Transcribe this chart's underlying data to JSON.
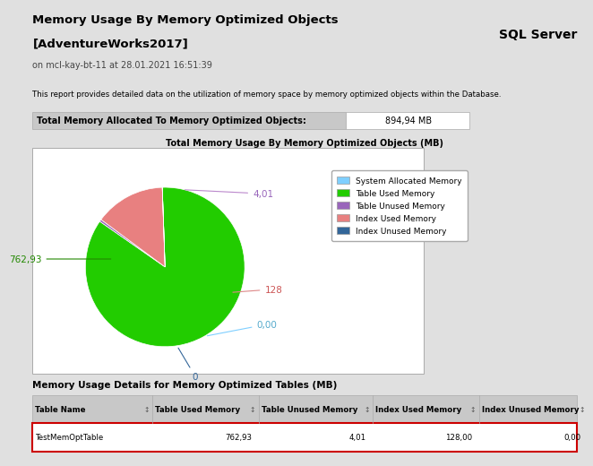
{
  "title_line1": "Memory Usage By Memory Optimized Objects",
  "title_line2": "[AdventureWorks2017]",
  "title_line3": "on mcl-kay-bt-11 at 28.01.2021 16:51:39",
  "sql_server_label": "SQL Server",
  "description": "This report provides detailed data on the utilization of memory space by memory optimized objects within the Database.",
  "total_memory_label": "Total Memory Allocated To Memory Optimized Objects:",
  "total_memory_value": "894,94 MB",
  "pie_title": "Total Memory Usage By Memory Optimized Objects (MB)",
  "pie_values": [
    0.001,
    762.93,
    4.01,
    128.0,
    0.001
  ],
  "pie_display_labels": [
    "0",
    "762,93",
    "4,01",
    "128",
    "0,00"
  ],
  "pie_colors": [
    "#7FCFFF",
    "#22CC00",
    "#9966BB",
    "#E88080",
    "#336699"
  ],
  "legend_labels": [
    "System Allocated Memory",
    "Table Used Memory",
    "Table Unused Memory",
    "Index Used Memory",
    "Index Unused Memory"
  ],
  "legend_colors": [
    "#7FCFFF",
    "#22CC00",
    "#9966BB",
    "#E88080",
    "#336699"
  ],
  "table_title": "Memory Usage Details for Memory Optimized Tables (MB)",
  "table_headers": [
    "Table Name",
    "Table Used Memory",
    "Table Unused Memory",
    "Index Used Memory",
    "Index Unused Memory"
  ],
  "table_row": [
    "TestMemOptTable",
    "762,93",
    "4,01",
    "128,00",
    "0,00"
  ],
  "bg_color": "#E0E0E0",
  "white": "#FFFFFF",
  "header_bg": "#D8D8D8",
  "table_header_bg": "#C8C8C8"
}
